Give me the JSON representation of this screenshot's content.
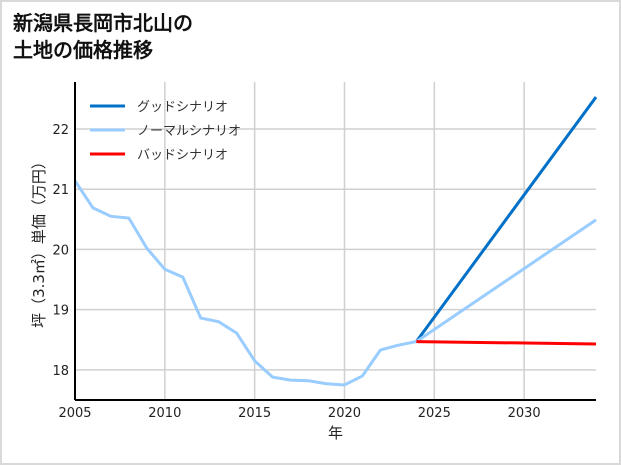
{
  "chart_data": {
    "type": "line",
    "title_lines": [
      "新潟県長岡市北山の",
      "土地の価格推移"
    ],
    "xlabel": "年",
    "ylabel": "坪（3.3㎡）単価（万円）",
    "xlim": [
      2005,
      2034
    ],
    "ylim": [
      17.5,
      22.78
    ],
    "xticks": [
      2005,
      2010,
      2015,
      2020,
      2025,
      2030
    ],
    "yticks": [
      18,
      19,
      20,
      21,
      22
    ],
    "grid": true,
    "legend_position": "top-left",
    "series": [
      {
        "name": "グッドシナリオ",
        "color": "#0070c8",
        "x": [
          2024,
          2034
        ],
        "y": [
          18.47,
          22.53
        ]
      },
      {
        "name": "ノーマルシナリオ",
        "color": "#99ccff",
        "x": [
          2005,
          2006,
          2007,
          2008,
          2009,
          2010,
          2011,
          2012,
          2013,
          2014,
          2015,
          2016,
          2017,
          2018,
          2019,
          2020,
          2021,
          2022,
          2023,
          2024,
          2034
        ],
        "y": [
          21.14,
          20.69,
          20.55,
          20.52,
          20.02,
          19.67,
          19.54,
          18.86,
          18.8,
          18.61,
          18.15,
          17.88,
          17.83,
          17.82,
          17.77,
          17.75,
          17.9,
          18.33,
          18.41,
          18.47,
          20.49
        ]
      },
      {
        "name": "バッドシナリオ",
        "color": "#ff0000",
        "x": [
          2024,
          2034
        ],
        "y": [
          18.47,
          18.43
        ]
      }
    ]
  }
}
